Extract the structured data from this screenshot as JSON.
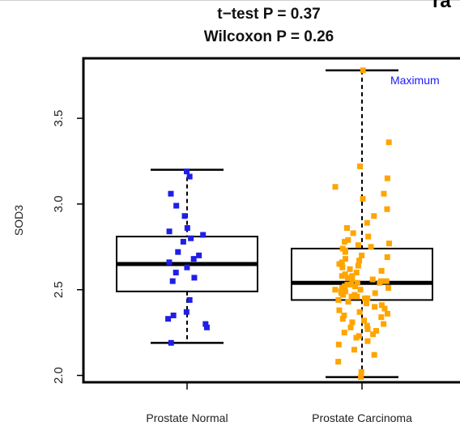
{
  "corner_text": "ra",
  "chart_data": {
    "type": "boxplot",
    "title_lines": [
      "t−test P = 0.37",
      "Wilcoxon P = 0.26"
    ],
    "ylabel": "SOD3",
    "xlabel": "",
    "ylim": [
      1.96,
      3.85
    ],
    "yticks": [
      2.0,
      2.5,
      3.0,
      3.5
    ],
    "ytick_labels": [
      "2.0",
      "2.5",
      "3.0",
      "3.5"
    ],
    "grid": false,
    "annotation": {
      "text": "Maximum",
      "color": "#1a1aff"
    },
    "groups": [
      {
        "category": "Prostate Normal",
        "color": "#1f1fe6",
        "whisker_low": 2.19,
        "q1": 2.49,
        "median": 2.65,
        "q3": 2.81,
        "whisker_high": 3.2,
        "points": [
          3.19,
          3.16,
          3.06,
          2.99,
          2.93,
          2.86,
          2.84,
          2.82,
          2.8,
          2.78,
          2.72,
          2.7,
          2.68,
          2.66,
          2.63,
          2.6,
          2.57,
          2.55,
          2.44,
          2.37,
          2.35,
          2.33,
          2.3,
          2.28,
          2.19
        ]
      },
      {
        "category": "Prostate Carcinoma",
        "color": "#ffa500",
        "whisker_low": 1.99,
        "q1": 2.44,
        "median": 2.54,
        "q3": 2.74,
        "whisker_high": 3.78,
        "points": [
          3.78,
          3.36,
          3.22,
          3.15,
          3.1,
          3.06,
          3.03,
          2.97,
          2.93,
          2.89,
          2.86,
          2.83,
          2.81,
          2.79,
          2.78,
          2.77,
          2.76,
          2.75,
          2.74,
          2.73,
          2.72,
          2.7,
          2.69,
          2.68,
          2.67,
          2.66,
          2.65,
          2.64,
          2.63,
          2.62,
          2.61,
          2.6,
          2.59,
          2.58,
          2.58,
          2.57,
          2.56,
          2.56,
          2.55,
          2.55,
          2.54,
          2.54,
          2.53,
          2.53,
          2.52,
          2.52,
          2.51,
          2.51,
          2.5,
          2.5,
          2.49,
          2.49,
          2.48,
          2.48,
          2.47,
          2.47,
          2.46,
          2.46,
          2.45,
          2.45,
          2.44,
          2.43,
          2.42,
          2.41,
          2.4,
          2.39,
          2.38,
          2.37,
          2.36,
          2.35,
          2.34,
          2.33,
          2.32,
          2.31,
          2.3,
          2.29,
          2.28,
          2.27,
          2.26,
          2.25,
          2.24,
          2.23,
          2.22,
          2.2,
          2.18,
          2.15,
          2.12,
          2.08,
          2.02,
          1.99
        ]
      }
    ]
  }
}
